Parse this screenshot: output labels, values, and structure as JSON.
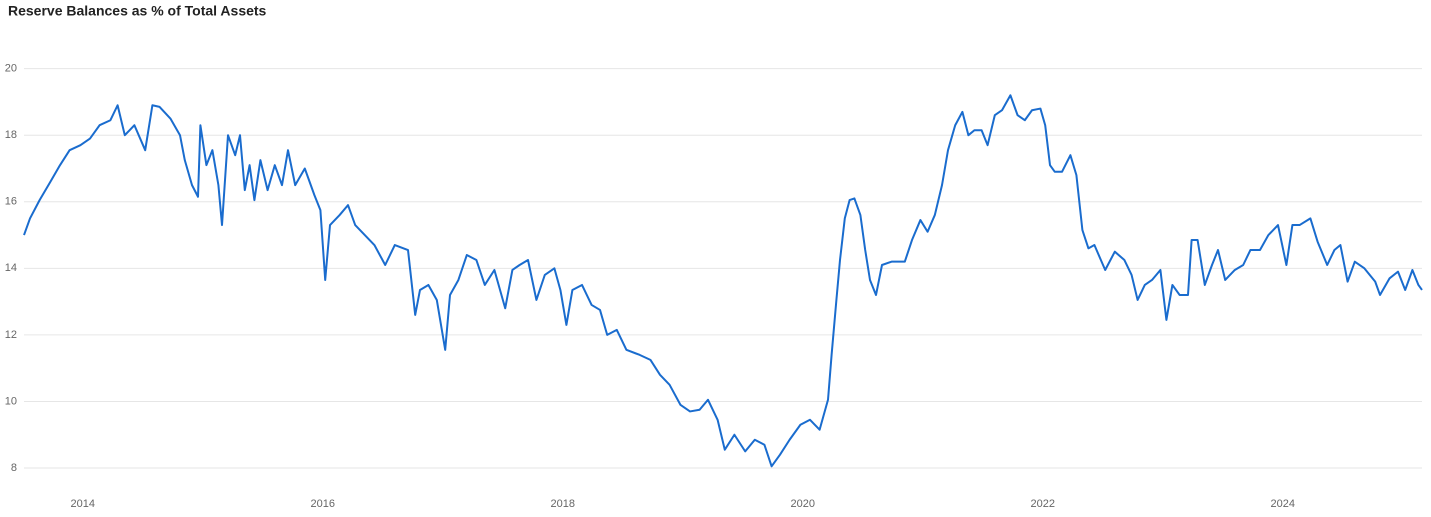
{
  "chart_data": {
    "type": "line",
    "title": "Reserve Balances as % of Total Assets",
    "x": [
      2013.51,
      2013.56,
      2013.64,
      2013.73,
      2013.81,
      2013.89,
      2013.98,
      2014.06,
      2014.14,
      2014.23,
      2014.29,
      2014.35,
      2014.43,
      2014.52,
      2014.58,
      2014.64,
      2014.73,
      2014.81,
      2014.85,
      2014.91,
      2014.96,
      2014.98,
      2015.03,
      2015.08,
      2015.13,
      2015.16,
      2015.21,
      2015.27,
      2015.31,
      2015.35,
      2015.39,
      2015.43,
      2015.48,
      2015.54,
      2015.6,
      2015.66,
      2015.71,
      2015.77,
      2015.85,
      2015.93,
      2015.98,
      2016.02,
      2016.06,
      2016.14,
      2016.21,
      2016.27,
      2016.35,
      2016.43,
      2016.52,
      2016.6,
      2016.71,
      2016.77,
      2016.81,
      2016.88,
      2016.95,
      2017.02,
      2017.06,
      2017.13,
      2017.2,
      2017.28,
      2017.35,
      2017.43,
      2017.52,
      2017.58,
      2017.64,
      2017.71,
      2017.78,
      2017.85,
      2017.93,
      2017.98,
      2018.03,
      2018.08,
      2018.16,
      2018.24,
      2018.31,
      2018.37,
      2018.45,
      2018.53,
      2018.64,
      2018.73,
      2018.81,
      2018.89,
      2018.98,
      2019.06,
      2019.14,
      2019.21,
      2019.29,
      2019.35,
      2019.43,
      2019.52,
      2019.6,
      2019.68,
      2019.74,
      2019.81,
      2019.89,
      2019.98,
      2020.06,
      2020.14,
      2020.21,
      2020.24,
      2020.28,
      2020.31,
      2020.35,
      2020.39,
      2020.43,
      2020.48,
      2020.52,
      2020.56,
      2020.61,
      2020.66,
      2020.74,
      2020.85,
      2020.91,
      2020.98,
      2021.04,
      2021.1,
      2021.16,
      2021.21,
      2021.27,
      2021.33,
      2021.38,
      2021.43,
      2021.49,
      2021.54,
      2021.6,
      2021.66,
      2021.73,
      2021.79,
      2021.85,
      2021.91,
      2021.98,
      2022.02,
      2022.06,
      2022.1,
      2022.16,
      2022.23,
      2022.28,
      2022.33,
      2022.38,
      2022.43,
      2022.52,
      2022.6,
      2022.68,
      2022.74,
      2022.79,
      2022.85,
      2022.91,
      2022.98,
      2023.03,
      2023.08,
      2023.14,
      2023.21,
      2023.24,
      2023.29,
      2023.35,
      2023.41,
      2023.46,
      2023.52,
      2023.6,
      2023.67,
      2023.73,
      2023.81,
      2023.88,
      2023.96,
      2024.03,
      2024.08,
      2024.14,
      2024.23,
      2024.29,
      2024.37,
      2024.43,
      2024.48,
      2024.54,
      2024.6,
      2024.68,
      2024.77,
      2024.81,
      2024.89,
      2024.96,
      2025.02,
      2025.08,
      2025.13,
      2025.16
    ],
    "values": [
      15.0,
      15.5,
      16.05,
      16.6,
      17.1,
      17.55,
      17.7,
      17.9,
      18.3,
      18.45,
      18.9,
      18.0,
      18.3,
      17.55,
      18.9,
      18.85,
      18.5,
      18.0,
      17.25,
      16.5,
      16.15,
      18.3,
      17.1,
      17.55,
      16.5,
      15.3,
      18.0,
      17.4,
      18.0,
      16.35,
      17.1,
      16.05,
      17.25,
      16.35,
      17.1,
      16.5,
      17.55,
      16.5,
      17.0,
      16.2,
      15.75,
      13.65,
      15.3,
      15.6,
      15.9,
      15.3,
      15.0,
      14.7,
      14.1,
      14.7,
      14.55,
      12.6,
      13.35,
      13.5,
      13.05,
      11.55,
      13.2,
      13.65,
      14.4,
      14.25,
      13.5,
      13.95,
      12.8,
      13.95,
      14.1,
      14.25,
      13.05,
      13.8,
      14.0,
      13.35,
      12.3,
      13.35,
      13.5,
      12.9,
      12.75,
      12.0,
      12.15,
      11.55,
      11.4,
      11.25,
      10.8,
      10.5,
      9.9,
      9.7,
      9.75,
      10.05,
      9.45,
      8.55,
      9.0,
      8.5,
      8.85,
      8.7,
      8.05,
      8.4,
      8.85,
      9.3,
      9.45,
      9.15,
      10.05,
      11.4,
      13.05,
      14.25,
      15.5,
      16.05,
      16.1,
      15.6,
      14.55,
      13.65,
      13.2,
      14.1,
      14.2,
      14.2,
      14.85,
      15.45,
      15.1,
      15.6,
      16.5,
      17.55,
      18.3,
      18.7,
      18.0,
      18.15,
      18.15,
      17.7,
      18.6,
      18.75,
      19.2,
      18.6,
      18.45,
      18.75,
      18.8,
      18.3,
      17.1,
      16.9,
      16.9,
      17.4,
      16.8,
      15.15,
      14.6,
      14.7,
      13.95,
      14.5,
      14.25,
      13.8,
      13.05,
      13.5,
      13.65,
      13.95,
      12.45,
      13.5,
      13.2,
      13.2,
      14.85,
      14.85,
      13.5,
      14.1,
      14.55,
      13.65,
      13.95,
      14.1,
      14.55,
      14.55,
      15.0,
      15.3,
      14.1,
      15.3,
      15.3,
      15.5,
      14.8,
      14.1,
      14.55,
      14.7,
      13.6,
      14.2,
      14.0,
      13.6,
      13.2,
      13.7,
      13.9,
      13.35,
      13.95,
      13.5,
      13.35
    ],
    "color": "#1a6cce",
    "xlim": [
      2013.51,
      2025.16
    ],
    "xticks": [
      2014,
      2016,
      2018,
      2020,
      2022,
      2024
    ],
    "ylim": [
      7.64,
      20.5
    ],
    "yticks": [
      8,
      10,
      12,
      14,
      16,
      18,
      20
    ],
    "grid": true
  }
}
